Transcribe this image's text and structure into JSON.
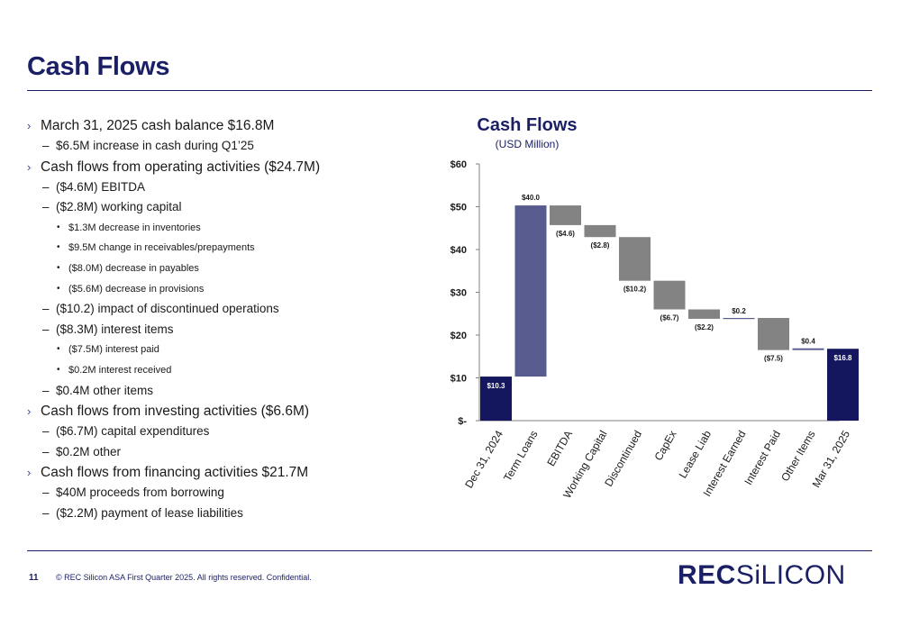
{
  "title": "Cash Flows",
  "bullets": [
    {
      "level": 1,
      "text": "March 31, 2025 cash balance $16.8M"
    },
    {
      "level": 2,
      "text": "$6.5M increase in cash during Q1’25"
    },
    {
      "level": 1,
      "text": "Cash flows from operating activities ($24.7M)"
    },
    {
      "level": 2,
      "text": "($4.6M) EBITDA"
    },
    {
      "level": 2,
      "text": " ($2.8M) working capital"
    },
    {
      "level": 3,
      "text": "$1.3M decrease in inventories"
    },
    {
      "level": 3,
      "text": "$9.5M change in receivables/prepayments"
    },
    {
      "level": 3,
      "text": "($8.0M) decrease in payables"
    },
    {
      "level": 3,
      "text": "($5.6M) decrease in provisions"
    },
    {
      "level": 2,
      "text": "($10.2) impact of discontinued operations"
    },
    {
      "level": 2,
      "text": "($8.3M) interest items"
    },
    {
      "level": 3,
      "text": "($7.5M) interest paid"
    },
    {
      "level": 3,
      "text": "$0.2M interest received"
    },
    {
      "level": 2,
      "text": "$0.4M other items"
    },
    {
      "level": 1,
      "text": "Cash flows from investing activities ($6.6M)"
    },
    {
      "level": 2,
      "text": "($6.7M) capital expenditures"
    },
    {
      "level": 2,
      "text": "$0.2M other"
    },
    {
      "level": 1,
      "text": "Cash flows from financing activities $21.7M"
    },
    {
      "level": 2,
      "text": "$40M proceeds from borrowing"
    },
    {
      "level": 2,
      "text": "($2.2M) payment of lease liabilities"
    }
  ],
  "chart_data": {
    "type": "bar",
    "subtype": "waterfall",
    "title": "Cash Flows",
    "subtitle": "(USD Million)",
    "categories": [
      "Dec 31, 2024",
      "Term Loans",
      "EBITDA",
      "Working Capital",
      "Discontinued",
      "CapEx",
      "Lease Liab",
      "Interest Earned",
      "Interest Paid",
      "Other Items",
      "Mar 31, 2025"
    ],
    "values": [
      10.3,
      40.0,
      -4.6,
      -2.8,
      -10.2,
      -6.7,
      -2.2,
      0.2,
      -7.5,
      0.4,
      16.8
    ],
    "kinds": [
      "total",
      "increase",
      "decrease",
      "decrease",
      "decrease",
      "decrease",
      "decrease",
      "increase",
      "decrease",
      "increase",
      "total"
    ],
    "data_labels": [
      "$10.3",
      "$40.0",
      "($4.6)",
      "($2.8)",
      "($10.2)",
      "($6.7)",
      "($2.2)",
      "$0.2",
      "($7.5)",
      "$0.4",
      "$16.8"
    ],
    "ylim": [
      0,
      60
    ],
    "yticks": [
      0,
      10,
      20,
      30,
      40,
      50,
      60
    ],
    "ytick_labels": [
      "$-",
      "$10",
      "$20",
      "$30",
      "$40",
      "$50",
      "$60"
    ],
    "colors": {
      "total": "#14165e",
      "increase": "#575b8e",
      "decrease": "#838383"
    },
    "grid": false
  },
  "footer": {
    "page_number": "11",
    "copyright": "© REC Silicon ASA First Quarter 2025. All rights reserved. Confidential.",
    "logo_rec": "REC",
    "logo_silicon": "SiLICON"
  }
}
